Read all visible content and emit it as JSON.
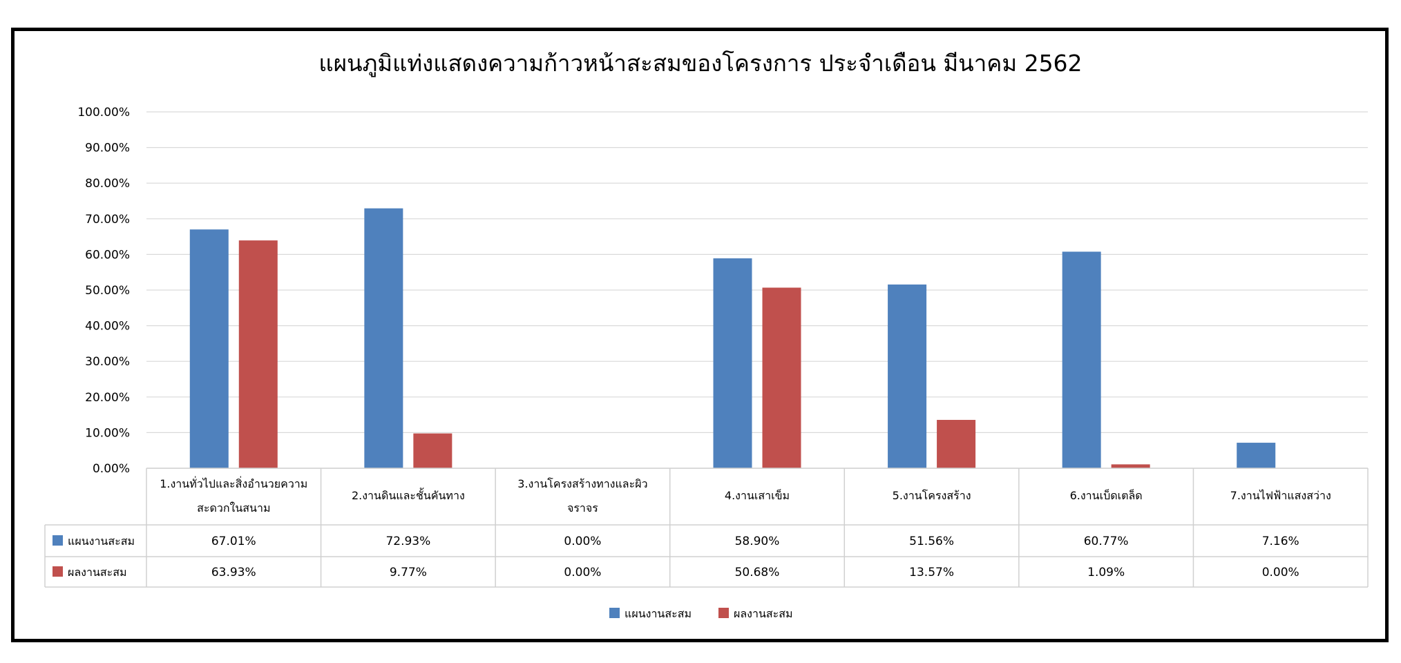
{
  "chart_data": {
    "type": "bar",
    "title": "แผนภูมิแท่งแสดงความก้าวหน้าสะสมของโครงการ ประจำเดือน มีนาคม 2562",
    "categories": [
      "1.งานทั่วไปและสิ่งอำนวยความสะดวกในสนาม",
      "2.งานดินและชั้นคันทาง",
      "3.งานโครงสร้างทางและผิวจราจร",
      "4.งานเสาเข็ม",
      "5.งานโครงสร้าง",
      "6.งานเบ็ดเตล็ด",
      "7.งานไฟฟ้าแสงสว่าง"
    ],
    "category_lines": [
      [
        "1.งานทั่วไปและสิ่งอำนวยความ",
        "สะดวกในสนาม"
      ],
      [
        "2.งานดินและชั้นคันทาง"
      ],
      [
        "3.งานโครงสร้างทางและผิว",
        "จราจร"
      ],
      [
        "4.งานเสาเข็ม"
      ],
      [
        "5.งานโครงสร้าง"
      ],
      [
        "6.งานเบ็ดเตล็ด"
      ],
      [
        "7.งานไฟฟ้าแสงสว่าง"
      ]
    ],
    "series": [
      {
        "name": "แผนงานสะสม",
        "color": "#4F81BD",
        "values": [
          67.01,
          72.93,
          0.0,
          58.9,
          51.56,
          60.77,
          7.16
        ],
        "labels": [
          "67.01%",
          "72.93%",
          "0.00%",
          "58.90%",
          "51.56%",
          "60.77%",
          "7.16%"
        ]
      },
      {
        "name": "ผลงานสะสม",
        "color": "#C0504D",
        "values": [
          63.93,
          9.77,
          0.0,
          50.68,
          13.57,
          1.09,
          0.0
        ],
        "labels": [
          "63.93%",
          "9.77%",
          "0.00%",
          "50.68%",
          "13.57%",
          "1.09%",
          "0.00%"
        ]
      }
    ],
    "ylim": [
      0,
      100
    ],
    "yticks": [
      "0.00%",
      "10.00%",
      "20.00%",
      "30.00%",
      "40.00%",
      "50.00%",
      "60.00%",
      "70.00%",
      "80.00%",
      "90.00%",
      "100.00%"
    ],
    "grid": true,
    "data_table": true,
    "legend": "bottom-center"
  }
}
